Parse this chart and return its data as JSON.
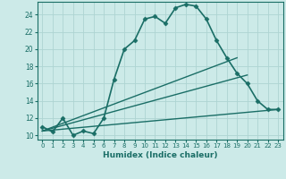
{
  "title": "",
  "xlabel": "Humidex (Indice chaleur)",
  "ylabel": "",
  "background_color": "#cceae8",
  "grid_color": "#aed4d2",
  "line_color": "#1a6e66",
  "xlim": [
    -0.5,
    23.5
  ],
  "ylim": [
    9.5,
    25.5
  ],
  "xticks": [
    0,
    1,
    2,
    3,
    4,
    5,
    6,
    7,
    8,
    9,
    10,
    11,
    12,
    13,
    14,
    15,
    16,
    17,
    18,
    19,
    20,
    21,
    22,
    23
  ],
  "yticks": [
    10,
    12,
    14,
    16,
    18,
    20,
    22,
    24
  ],
  "series_main": {
    "x": [
      0,
      1,
      2,
      3,
      4,
      5,
      6,
      7,
      8,
      9,
      10,
      11,
      12,
      13,
      14,
      15,
      16,
      17,
      18,
      19,
      20,
      21,
      22,
      23
    ],
    "y": [
      11,
      10.4,
      12,
      10,
      10.5,
      10.2,
      12,
      16.5,
      20,
      21,
      23.5,
      23.8,
      23,
      24.8,
      25.2,
      25.0,
      23.5,
      21,
      19.0,
      17.2,
      16.0,
      14,
      13,
      13
    ],
    "linewidth": 1.2,
    "markersize": 2.5
  },
  "series_lines": [
    {
      "x": [
        0,
        19
      ],
      "y": [
        10.5,
        19.0
      ],
      "linewidth": 1.0
    },
    {
      "x": [
        0,
        20
      ],
      "y": [
        10.5,
        17.0
      ],
      "linewidth": 1.0
    },
    {
      "x": [
        0,
        23
      ],
      "y": [
        10.5,
        13.0
      ],
      "linewidth": 1.0
    }
  ]
}
